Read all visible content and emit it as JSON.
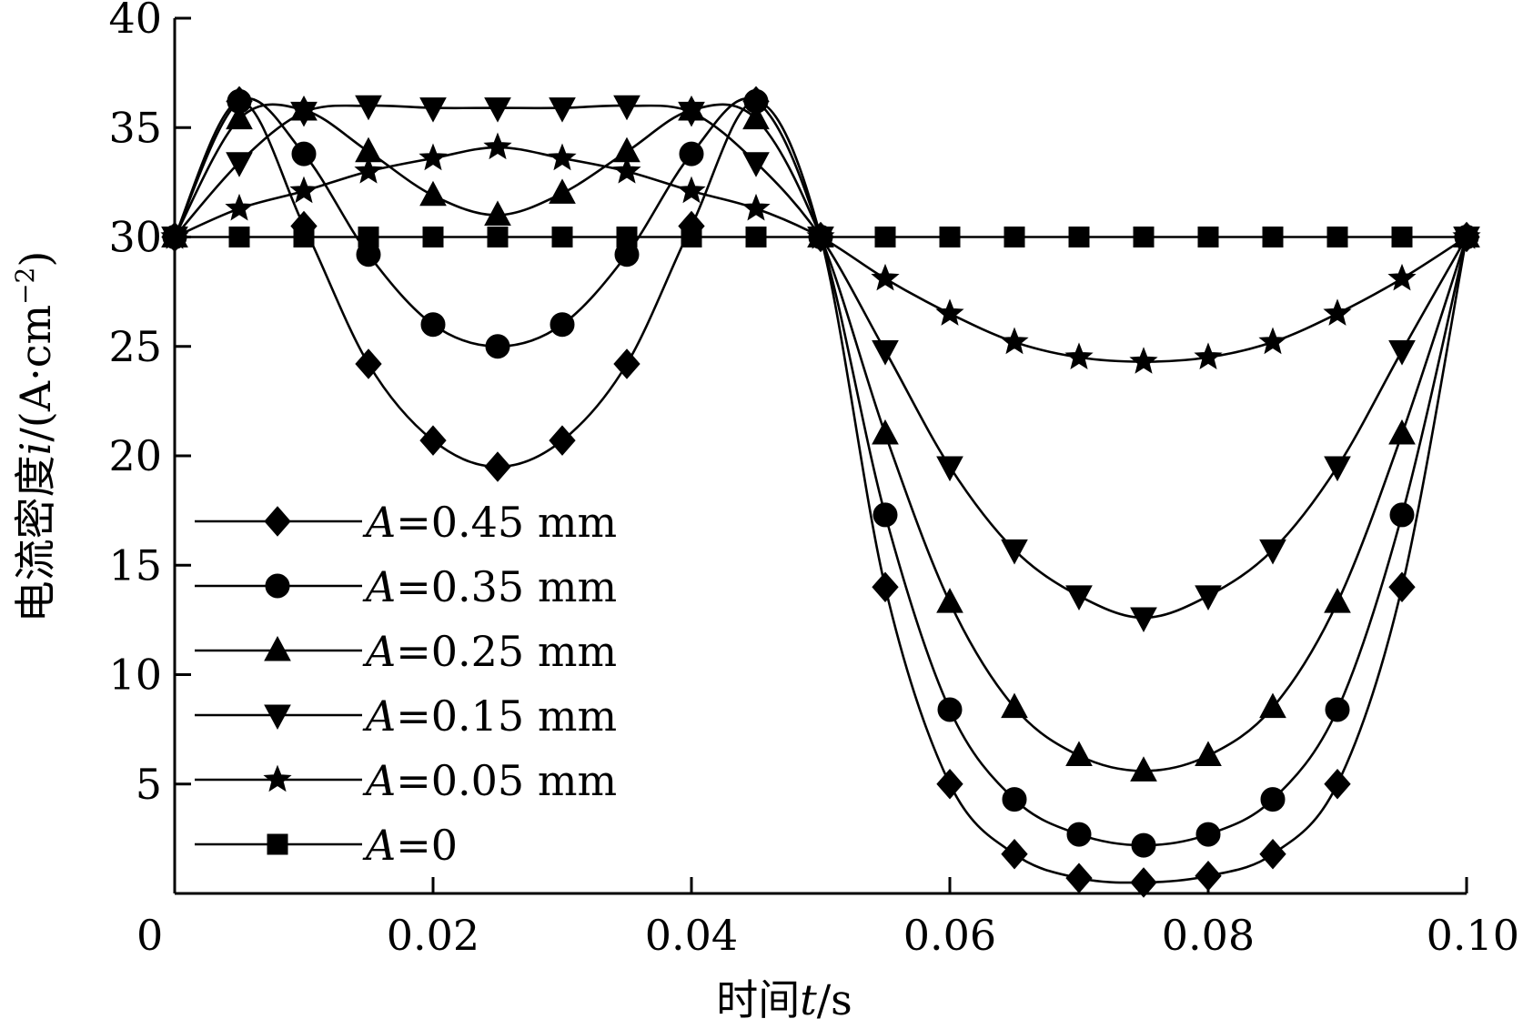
{
  "chart_data": {
    "type": "line",
    "title": "",
    "xlabel_prefix": "时间",
    "xlabel_var": "t",
    "xlabel_unit": "/s",
    "ylabel_prefix": "电流密度",
    "ylabel_var": "i",
    "ylabel_unit": "/(A·cm",
    "ylabel_unit_exp": "−2",
    "ylabel_unit_close": ")",
    "xlim": [
      0,
      0.1
    ],
    "ylim": [
      0,
      40
    ],
    "xticks": [
      0,
      0.02,
      0.04,
      0.06,
      0.08,
      0.1
    ],
    "xtick_labels": [
      "0",
      "0.02",
      "0.04",
      "0.06",
      "0.08",
      "0.10"
    ],
    "yticks": [
      5,
      10,
      15,
      20,
      25,
      30,
      35,
      40
    ],
    "ytick_labels": [
      "5",
      "10",
      "15",
      "20",
      "25",
      "30",
      "35",
      "40"
    ],
    "grid": false,
    "legend_position": "lower-left",
    "x": [
      0,
      0.005,
      0.01,
      0.015,
      0.02,
      0.025,
      0.03,
      0.035,
      0.04,
      0.045,
      0.05,
      0.055,
      0.06,
      0.065,
      0.07,
      0.075,
      0.08,
      0.085,
      0.09,
      0.095,
      0.1
    ],
    "series": [
      {
        "name": "A=0.45 mm",
        "var": "A",
        "rest": "=0.45 mm",
        "marker": "diamond",
        "values": [
          30,
          36.2,
          30.5,
          24.2,
          20.7,
          19.5,
          20.7,
          24.2,
          30.5,
          36.2,
          30,
          14,
          5,
          1.8,
          0.7,
          0.5,
          0.8,
          1.8,
          5,
          14,
          30
        ]
      },
      {
        "name": "A=0.35 mm",
        "var": "A",
        "rest": "=0.35 mm",
        "marker": "circle",
        "values": [
          30,
          36.2,
          33.8,
          29.2,
          26,
          25,
          26,
          29.2,
          33.8,
          36.2,
          30,
          17.3,
          8.4,
          4.3,
          2.7,
          2.2,
          2.7,
          4.3,
          8.4,
          17.3,
          30
        ]
      },
      {
        "name": "A=0.25 mm",
        "var": "A",
        "rest": "=0.25 mm",
        "marker": "triangle-up",
        "values": [
          30,
          35.4,
          35.8,
          33.9,
          31.9,
          31,
          32,
          33.9,
          35.8,
          35.4,
          30,
          21,
          13.3,
          8.5,
          6.3,
          5.6,
          6.3,
          8.5,
          13.3,
          21,
          30
        ]
      },
      {
        "name": "A=0.15 mm",
        "var": "A",
        "rest": "=0.15 mm",
        "marker": "triangle-down",
        "values": [
          30,
          33.4,
          35.7,
          36,
          35.9,
          35.9,
          35.9,
          36,
          35.7,
          33.4,
          30,
          24.8,
          19.5,
          15.7,
          13.6,
          12.6,
          13.6,
          15.7,
          19.5,
          24.8,
          30
        ]
      },
      {
        "name": "A=0.05 mm",
        "var": "A",
        "rest": "=0.05 mm",
        "marker": "star",
        "values": [
          30,
          31.3,
          32.1,
          33,
          33.6,
          34.1,
          33.6,
          33,
          32.1,
          31.3,
          30,
          28.1,
          26.5,
          25.2,
          24.5,
          24.3,
          24.5,
          25.2,
          26.5,
          28.1,
          30
        ]
      },
      {
        "name": "A=0",
        "var": "A",
        "rest": "=0",
        "marker": "square",
        "values": [
          30,
          30,
          30,
          30,
          30,
          30,
          30,
          30,
          30,
          30,
          30,
          30,
          30,
          30,
          30,
          30,
          30,
          30,
          30,
          30,
          30
        ]
      }
    ]
  }
}
